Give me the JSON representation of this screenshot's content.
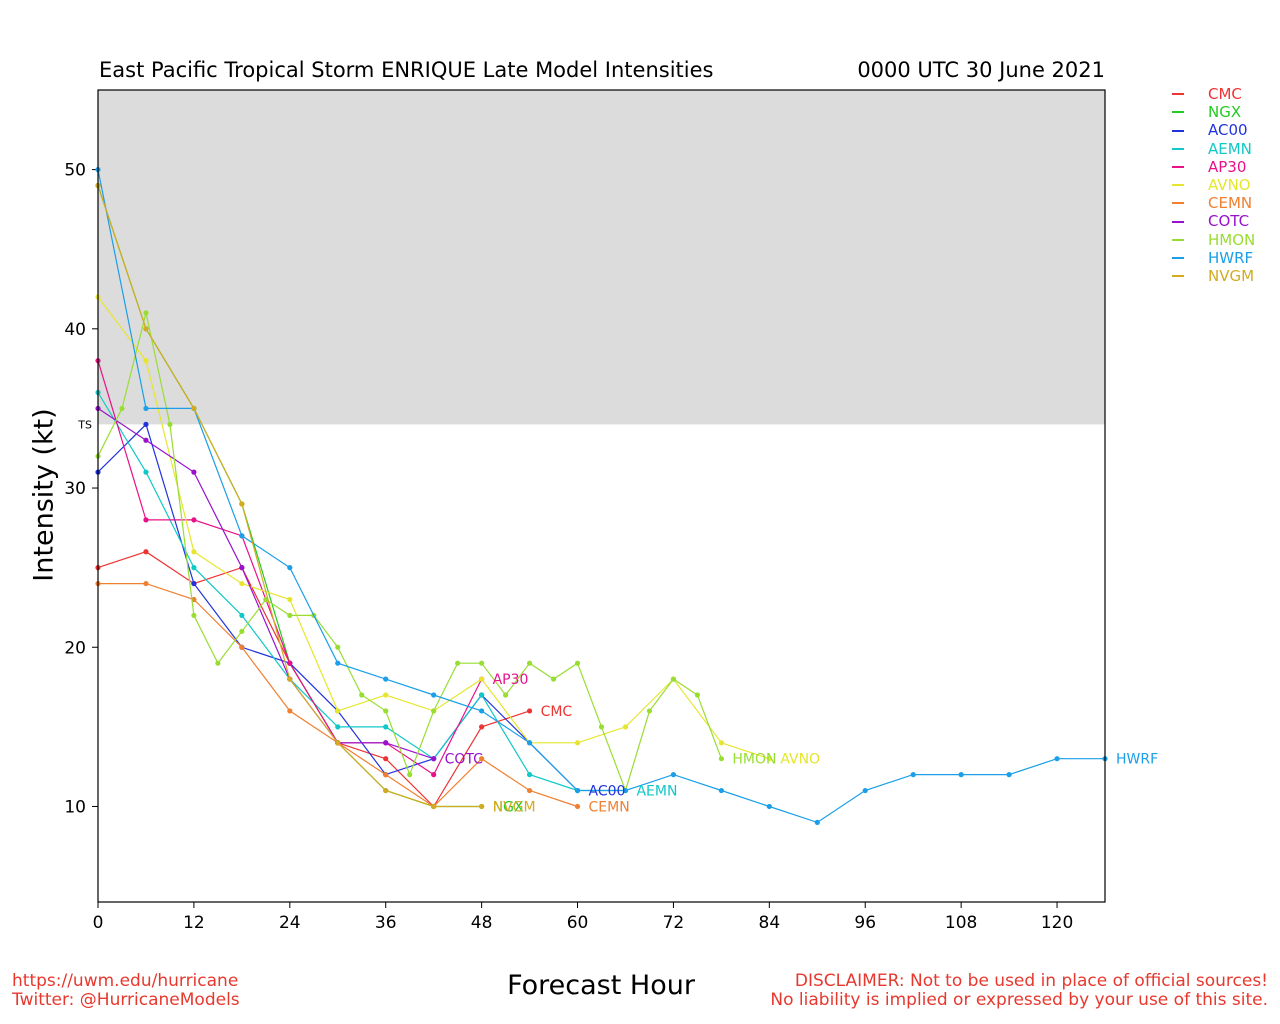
{
  "header": {
    "title": "East Pacific Tropical Storm ENRIQUE Late Model Intensities",
    "timestamp": "0000 UTC 30 June 2021"
  },
  "footer": {
    "url": "https://uwm.edu/hurricane",
    "twitter": "Twitter: @HurricaneModels",
    "disclaimer_1": "DISCLAIMER: Not to be used in place of official sources!",
    "disclaimer_2": "No liability is implied or expressed by your use of this site."
  },
  "chart_data": {
    "type": "line",
    "title": "East Pacific Tropical Storm ENRIQUE Late Model Intensities",
    "xlabel": "Forecast Hour",
    "ylabel": "Intensity (kt)",
    "xlim": [
      0,
      126
    ],
    "ylim": [
      4,
      55
    ],
    "xticks": [
      0,
      12,
      24,
      36,
      48,
      60,
      72,
      84,
      96,
      108,
      120
    ],
    "yticks": [
      10,
      20,
      30,
      40,
      50
    ],
    "ts_threshold": 34,
    "ts_label": "TS",
    "ts_band_color": "#dcdcdc",
    "grid": false,
    "legend_position": "outside-right",
    "series": [
      {
        "name": "CMC",
        "color": "#ee3333",
        "x": [
          0,
          6,
          12,
          18,
          24,
          30,
          36,
          42,
          48,
          54
        ],
        "y": [
          25,
          26,
          24,
          25,
          19,
          14,
          13,
          10,
          15,
          16
        ]
      },
      {
        "name": "NGX",
        "color": "#22cc22",
        "x": [
          0,
          6,
          12,
          18,
          24,
          30,
          36,
          42,
          48
        ],
        "y": [
          49,
          40,
          35,
          29,
          19,
          14,
          11,
          10,
          10
        ]
      },
      {
        "name": "AC00",
        "color": "#2233dd",
        "x": [
          0,
          6,
          12,
          18,
          24,
          30,
          36,
          42,
          48,
          54,
          60
        ],
        "y": [
          31,
          34,
          24,
          20,
          19,
          16,
          12,
          13,
          17,
          14,
          11
        ]
      },
      {
        "name": "AEMN",
        "color": "#11c8c8",
        "x": [
          0,
          6,
          12,
          18,
          24,
          30,
          36,
          42,
          48,
          54,
          60,
          66
        ],
        "y": [
          36,
          31,
          25,
          22,
          18,
          15,
          15,
          13,
          17,
          12,
          11,
          11
        ]
      },
      {
        "name": "AP30",
        "color": "#e8118a",
        "x": [
          0,
          6,
          12,
          18,
          24,
          30,
          36,
          42,
          48
        ],
        "y": [
          38,
          28,
          28,
          27,
          19,
          14,
          14,
          12,
          18
        ]
      },
      {
        "name": "AVNO",
        "color": "#e6e62e",
        "x": [
          0,
          6,
          12,
          18,
          24,
          30,
          36,
          42,
          48,
          54,
          60,
          66,
          72,
          78,
          84
        ],
        "y": [
          42,
          38,
          26,
          24,
          23,
          16,
          17,
          16,
          18,
          14,
          14,
          15,
          18,
          14,
          13
        ]
      },
      {
        "name": "CEMN",
        "color": "#f08030",
        "x": [
          0,
          6,
          12,
          18,
          24,
          30,
          36,
          42,
          48,
          54,
          60
        ],
        "y": [
          24,
          24,
          23,
          20,
          16,
          14,
          12,
          10,
          13,
          11,
          10
        ]
      },
      {
        "name": "COTC",
        "color": "#9911cc",
        "x": [
          0,
          6,
          12,
          18,
          24,
          30,
          36,
          42
        ],
        "y": [
          35,
          33,
          31,
          25,
          18,
          14,
          14,
          13
        ]
      },
      {
        "name": "HMON",
        "color": "#99dd33",
        "x": [
          0,
          3,
          6,
          9,
          12,
          15,
          18,
          21,
          24,
          27,
          30,
          33,
          36,
          39,
          42,
          45,
          48,
          51,
          54,
          57,
          60,
          63,
          66,
          69,
          72,
          75,
          78
        ],
        "y": [
          32,
          35,
          41,
          34,
          22,
          19,
          21,
          23,
          22,
          22,
          20,
          17,
          16,
          12,
          16,
          19,
          19,
          17,
          19,
          18,
          19,
          15,
          11,
          16,
          18,
          17,
          13
        ]
      },
      {
        "name": "HWRF",
        "color": "#1a9fe8",
        "x": [
          0,
          6,
          12,
          18,
          24,
          30,
          36,
          42,
          48,
          54,
          60,
          66,
          72,
          78,
          84,
          90,
          96,
          102,
          108,
          114,
          120,
          126
        ],
        "y": [
          50,
          35,
          35,
          27,
          25,
          19,
          18,
          17,
          16,
          14,
          11,
          11,
          12,
          11,
          10,
          9,
          11,
          12,
          12,
          12,
          13,
          13
        ]
      },
      {
        "name": "NVGM",
        "color": "#d4aa22",
        "x": [
          0,
          6,
          12,
          18,
          24,
          30,
          36,
          42,
          48
        ],
        "y": [
          49,
          40,
          35,
          29,
          18,
          14,
          11,
          10,
          10
        ]
      }
    ],
    "end_labels": [
      {
        "series": "AP30",
        "text": "AP30"
      },
      {
        "series": "CMC",
        "text": "CMC"
      },
      {
        "series": "COTC",
        "text": "COTC"
      },
      {
        "series": "AC00",
        "text": "AC00"
      },
      {
        "series": "AEMN",
        "text": "AEMN"
      },
      {
        "series": "CEMN",
        "text": "CEMN"
      },
      {
        "series": "NGX",
        "text": "NGX"
      },
      {
        "series": "NVGM",
        "text": "NVGM"
      },
      {
        "series": "HMON",
        "text": "HMON"
      },
      {
        "series": "AVNO",
        "text": "AVNO"
      },
      {
        "series": "HWRF",
        "text": "HWRF"
      }
    ]
  }
}
